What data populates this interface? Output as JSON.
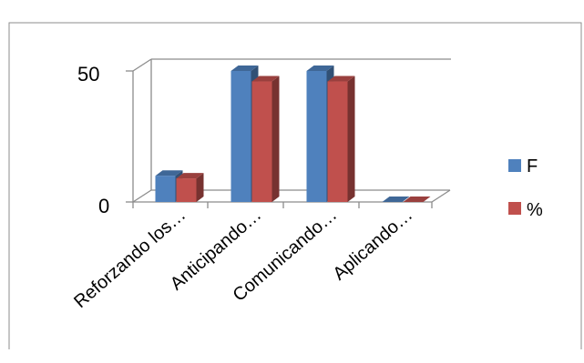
{
  "chart_data": {
    "type": "bar",
    "style": "3d-clustered-column",
    "categories": [
      "Reforzando los…",
      "Anticipando…",
      "Comunicando…",
      "Aplicando…"
    ],
    "series": [
      {
        "name": "F",
        "values": [
          10,
          50,
          50,
          0
        ],
        "color": "#4F81BD"
      },
      {
        "name": "%",
        "values": [
          9,
          46,
          46,
          0
        ],
        "color": "#C0504D"
      }
    ],
    "ylim": [
      0,
      50
    ],
    "yticks": [
      "0",
      "50"
    ],
    "legend_position": "right",
    "grid": false
  }
}
